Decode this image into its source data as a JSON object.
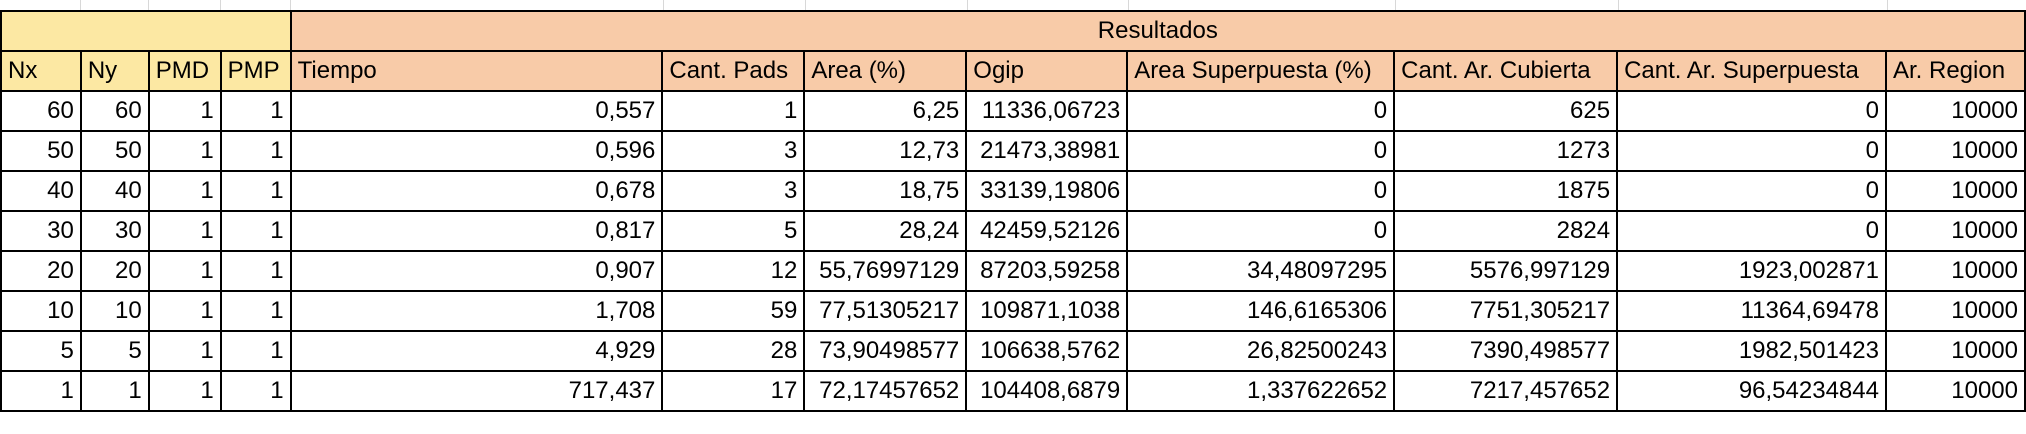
{
  "group_header": "Resultados",
  "columns": [
    "Nx",
    "Ny",
    "PMD",
    "PMP",
    "Tiempo",
    "Cant. Pads",
    "Area (%)",
    "Ogip",
    "Area Superpuesta (%)",
    "Cant. Ar. Cubierta",
    "Cant. Ar. Superpuesta",
    "Ar. Region"
  ],
  "rows": [
    [
      "60",
      "60",
      "1",
      "1",
      "0,557",
      "1",
      "6,25",
      "11336,06723",
      "0",
      "625",
      "0",
      "10000"
    ],
    [
      "50",
      "50",
      "1",
      "1",
      "0,596",
      "3",
      "12,73",
      "21473,38981",
      "0",
      "1273",
      "0",
      "10000"
    ],
    [
      "40",
      "40",
      "1",
      "1",
      "0,678",
      "3",
      "18,75",
      "33139,19806",
      "0",
      "1875",
      "0",
      "10000"
    ],
    [
      "30",
      "30",
      "1",
      "1",
      "0,817",
      "5",
      "28,24",
      "42459,52126",
      "0",
      "2824",
      "0",
      "10000"
    ],
    [
      "20",
      "20",
      "1",
      "1",
      "0,907",
      "12",
      "55,76997129",
      "87203,59258",
      "34,48097295",
      "5576,997129",
      "1923,002871",
      "10000"
    ],
    [
      "10",
      "10",
      "1",
      "1",
      "1,708",
      "59",
      "77,51305217",
      "109871,1038",
      "146,6165306",
      "7751,305217",
      "11364,69478",
      "10000"
    ],
    [
      "5",
      "5",
      "1",
      "1",
      "4,929",
      "28",
      "73,90498577",
      "106638,5762",
      "26,82500243",
      "7390,498577",
      "1982,501423",
      "10000"
    ],
    [
      "1",
      "1",
      "1",
      "1",
      "717,437",
      "17",
      "72,17457652",
      "104408,6879",
      "1,337622652",
      "7217,457652",
      "96,54234844",
      "10000"
    ]
  ],
  "colors": {
    "header_orange": "#f8cba8",
    "header_yellow": "#fce8a3"
  }
}
